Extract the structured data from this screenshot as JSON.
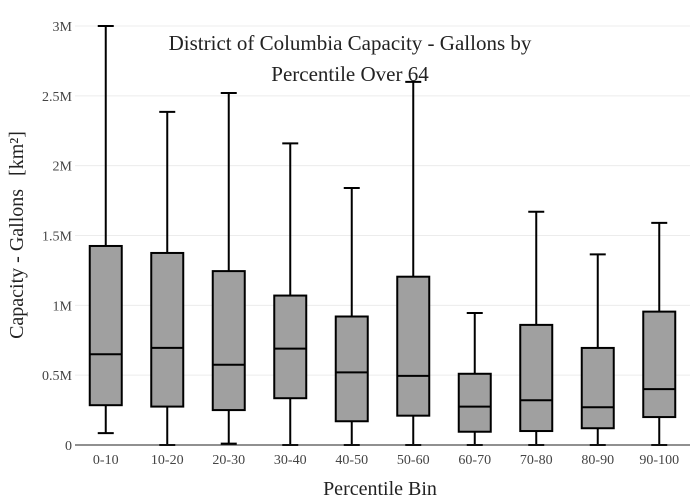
{
  "chart_data": {
    "type": "box",
    "title_lines": [
      "District of Columbia Capacity - Gallons by",
      "Percentile Over 64"
    ],
    "xlabel": "Percentile Bin",
    "ylabel": "Capacity - Gallons",
    "ylabel_unit": "[km²]",
    "ylim": [
      0,
      3000000
    ],
    "yticks": [
      {
        "value": 0,
        "label": "0"
      },
      {
        "value": 500000,
        "label": "0.5M"
      },
      {
        "value": 1000000,
        "label": "1M"
      },
      {
        "value": 1500000,
        "label": "1.5M"
      },
      {
        "value": 2000000,
        "label": "2M"
      },
      {
        "value": 2500000,
        "label": "2.5M"
      },
      {
        "value": 3000000,
        "label": "3M"
      }
    ],
    "grid": true,
    "legend": "none",
    "colors": {
      "box_fill": "#a0a0a0",
      "stroke": "#000000"
    },
    "categories": [
      "0-10",
      "10-20",
      "20-30",
      "30-40",
      "40-50",
      "50-60",
      "60-70",
      "70-80",
      "80-90",
      "90-100"
    ],
    "boxes": [
      {
        "min": 85000,
        "q1": 285000,
        "median": 650000,
        "q3": 1425000,
        "max": 3000000
      },
      {
        "min": 0,
        "q1": 275000,
        "median": 695000,
        "q3": 1375000,
        "max": 2385000
      },
      {
        "min": 10000,
        "q1": 250000,
        "median": 575000,
        "q3": 1245000,
        "max": 2520000
      },
      {
        "min": 0,
        "q1": 335000,
        "median": 690000,
        "q3": 1070000,
        "max": 2160000
      },
      {
        "min": 0,
        "q1": 170000,
        "median": 520000,
        "q3": 920000,
        "max": 1840000
      },
      {
        "min": 0,
        "q1": 210000,
        "median": 495000,
        "q3": 1205000,
        "max": 2600000
      },
      {
        "min": 0,
        "q1": 95000,
        "median": 275000,
        "q3": 510000,
        "max": 945000
      },
      {
        "min": 0,
        "q1": 100000,
        "median": 320000,
        "q3": 860000,
        "max": 1670000
      },
      {
        "min": 0,
        "q1": 120000,
        "median": 270000,
        "q3": 695000,
        "max": 1365000
      },
      {
        "min": 0,
        "q1": 200000,
        "median": 400000,
        "q3": 955000,
        "max": 1590000
      }
    ]
  }
}
